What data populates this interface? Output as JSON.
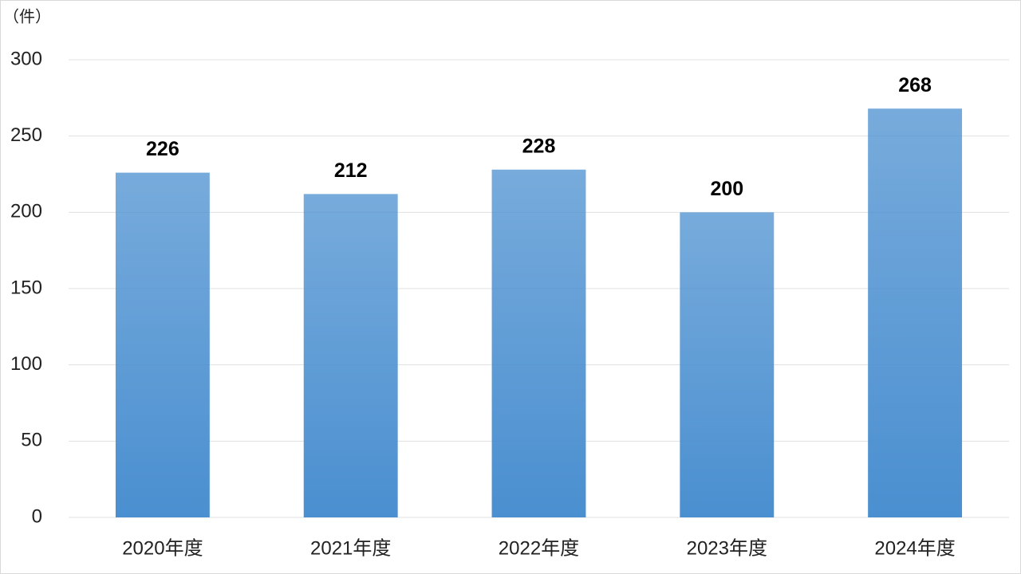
{
  "chart_data": {
    "type": "bar",
    "y_label": "（件）",
    "categories": [
      "2020年度",
      "2021年度",
      "2022年度",
      "2023年度",
      "2024年度"
    ],
    "values": [
      226,
      212,
      228,
      200,
      268
    ],
    "color": "#4a8fd0",
    "ylim": [
      0,
      300
    ],
    "yticks": [
      0,
      50,
      100,
      150,
      200,
      250,
      300
    ],
    "grid": true
  }
}
